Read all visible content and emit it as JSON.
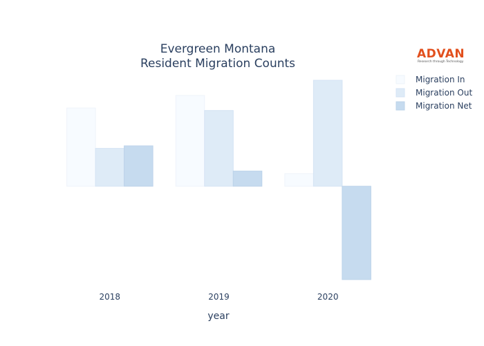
{
  "logo": {
    "text": "ADVAN",
    "tagline": "Research through Technology",
    "color": "#e2501e"
  },
  "chart_data": {
    "type": "bar",
    "title": [
      "Evergreen Montana",
      "Resident Migration Counts"
    ],
    "xlabel": "year",
    "ylabel": "",
    "categories": [
      "2018",
      "2019",
      "2020"
    ],
    "series": [
      {
        "name": "Migration In",
        "values": [
          31,
          36,
          5
        ],
        "color": "#f7fbff",
        "stroke": "#eef3fa"
      },
      {
        "name": "Migration Out",
        "values": [
          15,
          30,
          42
        ],
        "color": "#deebf7",
        "stroke": "#d4e3f4"
      },
      {
        "name": "Migration Net",
        "values": [
          16,
          6,
          -37
        ],
        "color": "#c6dbef",
        "stroke": "#bcd3ea"
      }
    ],
    "ylim": [
      -37,
      42
    ],
    "grid": false,
    "legend_position": "top-right"
  }
}
